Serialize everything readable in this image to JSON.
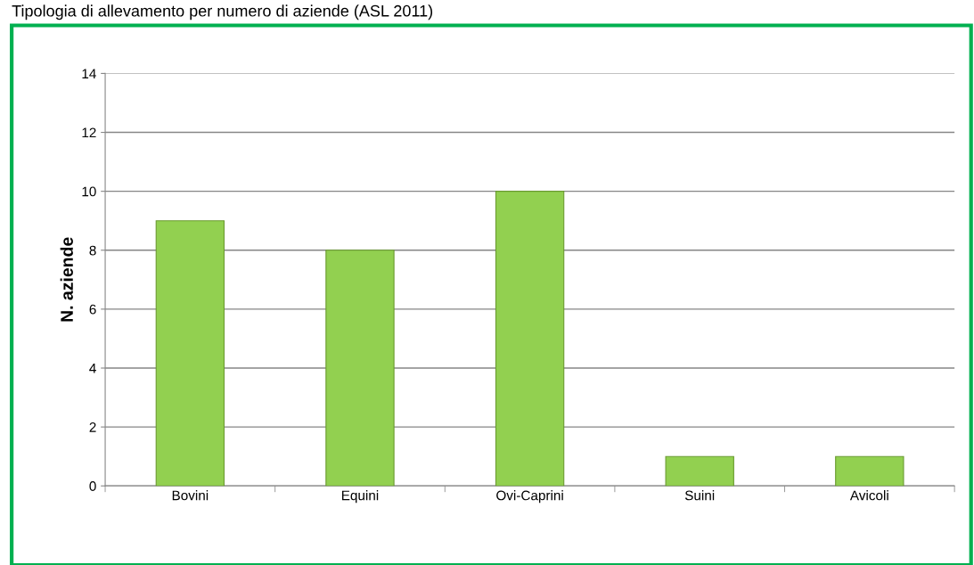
{
  "chart_data": {
    "type": "bar",
    "title": "Tipologia di allevamento per numero di aziende (ASL 2011)",
    "ylabel": "N. aziende",
    "categories": [
      "Bovini",
      "Equini",
      "Ovi-Caprini",
      "Suini",
      "Avicoli"
    ],
    "values": [
      9,
      8,
      10,
      1,
      1
    ],
    "color": "#92d050",
    "ylim": [
      0,
      14
    ],
    "yticks": [
      0,
      2,
      4,
      6,
      8,
      10,
      12,
      14
    ],
    "grid": "y"
  }
}
